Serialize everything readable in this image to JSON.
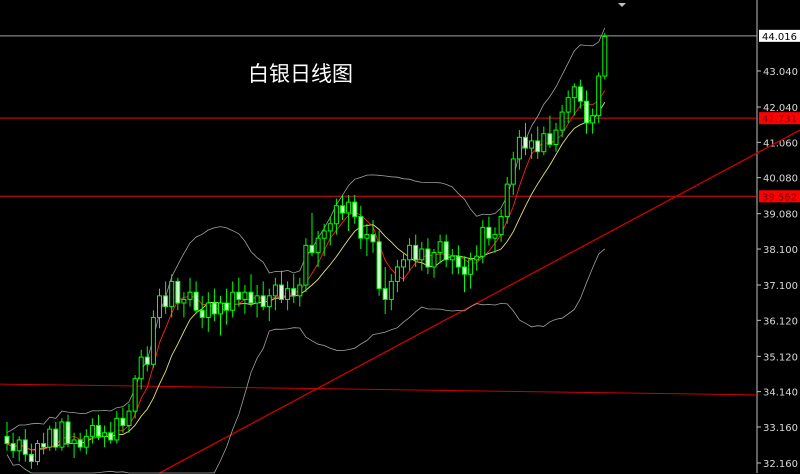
{
  "chart_data": {
    "type": "candlestick",
    "title": "白银日线图",
    "ylim": [
      31.9,
      44.9
    ],
    "y_ticks": [
      "43.040",
      "42.040",
      "41.060",
      "40.080",
      "39.080",
      "38.100",
      "37.100",
      "36.120",
      "35.120",
      "34.140",
      "33.160",
      "32.160"
    ],
    "price_labels": [
      {
        "text": "44.016",
        "value": 44.016,
        "style": "current",
        "color": "#ffffff"
      },
      {
        "text": "41.731",
        "value": 41.731,
        "style": "level",
        "color": "#ff0000"
      },
      {
        "text": "39.562",
        "value": 39.562,
        "style": "level",
        "color": "#ff0000"
      }
    ],
    "horizontal_levels": [
      44.016,
      41.731,
      39.562
    ],
    "sloped_support_line": {
      "start_value": 34.35,
      "end_value": 34.05,
      "color": "#cc0000"
    },
    "trend_line": {
      "start_value": 31.0,
      "end_value": 41.4,
      "color": "#cc0000"
    },
    "indicators": {
      "ma_fast_color": "#ff2020",
      "ma_slow_color": "#e8e070",
      "bollinger_color": "#a0a0a0"
    },
    "candle_colors": {
      "outline": "#00ff00",
      "bear_fill": "#d8ffd8",
      "bull_fill": "#000000"
    },
    "ohlc": [
      [
        32.9,
        33.3,
        32.5,
        32.7
      ],
      [
        32.7,
        33.0,
        32.3,
        32.5
      ],
      [
        32.5,
        32.9,
        32.2,
        32.8
      ],
      [
        32.8,
        33.1,
        32.2,
        32.4
      ],
      [
        32.4,
        32.7,
        32.0,
        32.2
      ],
      [
        32.2,
        32.8,
        32.1,
        32.7
      ],
      [
        32.7,
        33.0,
        32.4,
        32.6
      ],
      [
        32.6,
        33.2,
        32.5,
        33.1
      ],
      [
        33.1,
        33.3,
        32.5,
        32.6
      ],
      [
        32.6,
        33.4,
        32.5,
        33.3
      ],
      [
        33.3,
        33.5,
        32.6,
        32.7
      ],
      [
        32.7,
        33.0,
        32.3,
        32.8
      ],
      [
        32.8,
        33.0,
        32.5,
        32.6
      ],
      [
        32.6,
        33.1,
        32.4,
        32.9
      ],
      [
        32.9,
        33.4,
        32.7,
        33.2
      ],
      [
        33.2,
        33.5,
        32.8,
        32.9
      ],
      [
        32.9,
        33.2,
        32.6,
        33.0
      ],
      [
        33.0,
        33.3,
        32.7,
        32.8
      ],
      [
        32.8,
        33.6,
        32.7,
        33.4
      ],
      [
        33.4,
        33.7,
        33.0,
        33.2
      ],
      [
        33.2,
        33.8,
        33.0,
        33.6
      ],
      [
        33.6,
        34.6,
        33.4,
        34.5
      ],
      [
        34.5,
        35.3,
        34.2,
        35.1
      ],
      [
        35.1,
        35.4,
        34.7,
        34.9
      ],
      [
        34.9,
        36.4,
        34.8,
        36.2
      ],
      [
        36.2,
        37.0,
        35.9,
        36.8
      ],
      [
        36.8,
        37.2,
        36.3,
        36.5
      ],
      [
        36.5,
        37.4,
        36.2,
        37.2
      ],
      [
        37.2,
        37.3,
        36.4,
        36.6
      ],
      [
        36.6,
        36.9,
        36.2,
        36.7
      ],
      [
        36.7,
        37.3,
        36.5,
        36.9
      ],
      [
        36.9,
        37.2,
        36.3,
        36.4
      ],
      [
        36.4,
        36.8,
        35.9,
        36.2
      ],
      [
        36.2,
        36.9,
        35.8,
        36.6
      ],
      [
        36.6,
        37.0,
        36.1,
        36.3
      ],
      [
        36.3,
        36.8,
        35.7,
        36.6
      ],
      [
        36.6,
        37.0,
        36.0,
        36.4
      ],
      [
        36.4,
        37.2,
        36.2,
        36.9
      ],
      [
        36.9,
        37.3,
        36.5,
        36.7
      ],
      [
        36.7,
        37.1,
        36.3,
        36.9
      ],
      [
        36.9,
        37.4,
        36.5,
        36.6
      ],
      [
        36.6,
        37.1,
        36.2,
        36.8
      ],
      [
        36.8,
        37.2,
        36.4,
        36.5
      ],
      [
        36.5,
        37.0,
        36.1,
        36.8
      ],
      [
        36.8,
        37.3,
        36.4,
        37.1
      ],
      [
        37.1,
        37.5,
        36.6,
        36.7
      ],
      [
        36.7,
        37.2,
        36.4,
        37.0
      ],
      [
        37.0,
        37.4,
        36.6,
        36.8
      ],
      [
        36.8,
        37.3,
        36.5,
        37.1
      ],
      [
        37.1,
        38.4,
        36.9,
        38.2
      ],
      [
        38.2,
        39.1,
        37.9,
        38.0
      ],
      [
        38.0,
        38.6,
        37.6,
        38.4
      ],
      [
        38.4,
        38.8,
        37.9,
        38.6
      ],
      [
        38.6,
        39.0,
        38.2,
        38.8
      ],
      [
        38.8,
        39.5,
        38.5,
        39.3
      ],
      [
        39.3,
        39.6,
        38.9,
        39.1
      ],
      [
        39.1,
        39.6,
        38.6,
        39.4
      ],
      [
        39.4,
        39.6,
        38.8,
        39.0
      ],
      [
        39.0,
        39.3,
        38.1,
        38.4
      ],
      [
        38.4,
        38.8,
        37.9,
        38.5
      ],
      [
        38.5,
        38.9,
        38.0,
        38.3
      ],
      [
        38.3,
        38.6,
        36.8,
        37.0
      ],
      [
        37.0,
        37.6,
        36.3,
        36.7
      ],
      [
        36.7,
        37.4,
        36.4,
        37.2
      ],
      [
        37.2,
        37.8,
        36.9,
        37.6
      ],
      [
        37.6,
        38.0,
        37.2,
        37.8
      ],
      [
        37.8,
        38.4,
        37.5,
        38.2
      ],
      [
        38.2,
        38.5,
        37.6,
        37.8
      ],
      [
        37.8,
        38.3,
        37.5,
        38.1
      ],
      [
        38.1,
        38.4,
        37.4,
        37.6
      ],
      [
        37.6,
        38.1,
        37.3,
        38.0
      ],
      [
        38.0,
        38.5,
        37.7,
        38.3
      ],
      [
        38.3,
        38.5,
        37.6,
        37.8
      ],
      [
        37.8,
        38.1,
        37.4,
        37.9
      ],
      [
        37.9,
        38.2,
        37.4,
        37.6
      ],
      [
        37.6,
        37.9,
        36.9,
        37.4
      ],
      [
        37.4,
        38.0,
        37.0,
        37.8
      ],
      [
        37.8,
        38.2,
        37.5,
        37.9
      ],
      [
        37.9,
        38.9,
        37.7,
        38.7
      ],
      [
        38.7,
        39.0,
        38.2,
        38.4
      ],
      [
        38.4,
        38.7,
        38.0,
        38.5
      ],
      [
        38.5,
        39.2,
        38.3,
        39.0
      ],
      [
        39.0,
        40.1,
        38.8,
        39.9
      ],
      [
        39.9,
        40.8,
        39.6,
        40.6
      ],
      [
        40.6,
        41.4,
        40.3,
        41.2
      ],
      [
        41.2,
        41.6,
        40.7,
        40.9
      ],
      [
        40.9,
        41.3,
        40.6,
        41.1
      ],
      [
        41.1,
        41.5,
        40.6,
        40.8
      ],
      [
        40.8,
        41.5,
        40.7,
        41.3
      ],
      [
        41.3,
        41.8,
        40.9,
        41.0
      ],
      [
        41.0,
        41.6,
        40.8,
        41.4
      ],
      [
        41.4,
        42.1,
        41.2,
        41.9
      ],
      [
        41.9,
        42.5,
        41.6,
        42.3
      ],
      [
        42.3,
        42.7,
        41.8,
        42.6
      ],
      [
        42.6,
        42.8,
        42.0,
        42.2
      ],
      [
        42.2,
        42.5,
        41.3,
        41.6
      ],
      [
        41.6,
        42.0,
        41.3,
        41.8
      ],
      [
        41.8,
        43.0,
        41.6,
        42.9
      ],
      [
        42.9,
        44.1,
        42.8,
        44.0
      ]
    ]
  }
}
